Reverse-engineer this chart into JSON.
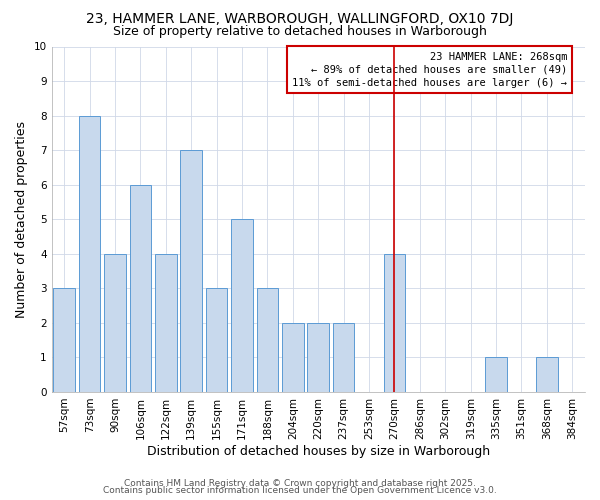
{
  "title": "23, HAMMER LANE, WARBOROUGH, WALLINGFORD, OX10 7DJ",
  "subtitle": "Size of property relative to detached houses in Warborough",
  "xlabel": "Distribution of detached houses by size in Warborough",
  "ylabel": "Number of detached properties",
  "categories": [
    "57sqm",
    "73sqm",
    "90sqm",
    "106sqm",
    "122sqm",
    "139sqm",
    "155sqm",
    "171sqm",
    "188sqm",
    "204sqm",
    "220sqm",
    "237sqm",
    "253sqm",
    "270sqm",
    "286sqm",
    "302sqm",
    "319sqm",
    "335sqm",
    "351sqm",
    "368sqm",
    "384sqm"
  ],
  "values": [
    3,
    8,
    4,
    6,
    4,
    7,
    3,
    5,
    3,
    2,
    2,
    2,
    0,
    4,
    0,
    0,
    0,
    1,
    0,
    1,
    0
  ],
  "bar_color": "#c8d9ed",
  "bar_edge_color": "#5b9bd5",
  "ylim": [
    0,
    10
  ],
  "yticks": [
    0,
    1,
    2,
    3,
    4,
    5,
    6,
    7,
    8,
    9,
    10
  ],
  "vline_idx": 13,
  "vline_color": "#cc0000",
  "annotation_text": "23 HAMMER LANE: 268sqm\n← 89% of detached houses are smaller (49)\n11% of semi-detached houses are larger (6) →",
  "annotation_box_color": "#cc0000",
  "background_color": "#ffffff",
  "plot_bg_color": "#ffffff",
  "grid_color": "#d0d8e8",
  "title_fontsize": 10,
  "subtitle_fontsize": 9,
  "axis_label_fontsize": 9,
  "tick_fontsize": 7.5,
  "footer_line1": "Contains HM Land Registry data © Crown copyright and database right 2025.",
  "footer_line2": "Contains public sector information licensed under the Open Government Licence v3.0.",
  "footer_fontsize": 6.5
}
